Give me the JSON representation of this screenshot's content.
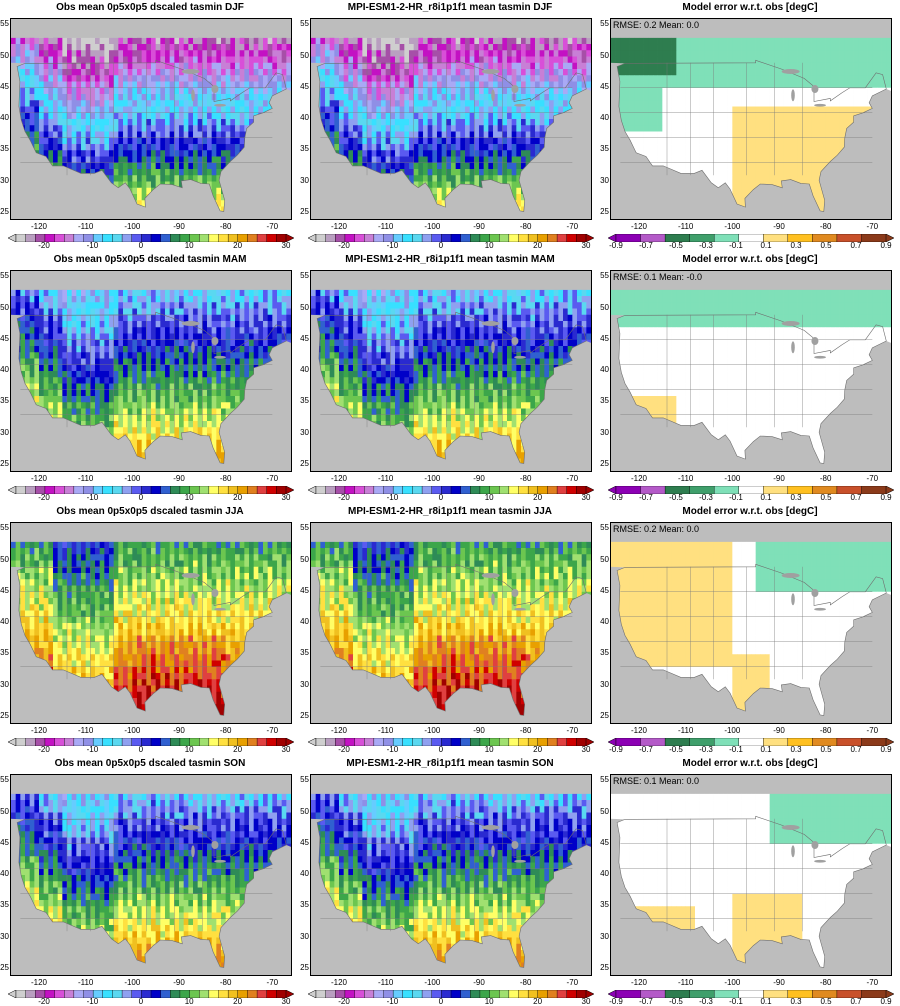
{
  "panels": [
    {
      "title": "Obs mean 0p5x0p5 dscaled tasmin DJF",
      "kind": "field",
      "season": "DJF"
    },
    {
      "title": "MPI-ESM1-2-HR_r8i1p1f1 mean tasmin DJF",
      "kind": "field",
      "season": "DJF"
    },
    {
      "title": "Model error w.r.t. obs [degC]",
      "kind": "error",
      "stats": "RMSE: 0.2  Mean: 0.0",
      "season": "DJF"
    },
    {
      "title": "Obs mean 0p5x0p5 dscaled tasmin MAM",
      "kind": "field",
      "season": "MAM"
    },
    {
      "title": "MPI-ESM1-2-HR_r8i1p1f1 mean tasmin MAM",
      "kind": "field",
      "season": "MAM"
    },
    {
      "title": "Model error w.r.t. obs [degC]",
      "kind": "error",
      "stats": "RMSE: 0.1  Mean: -0.0",
      "season": "MAM"
    },
    {
      "title": "Obs mean 0p5x0p5 dscaled tasmin JJA",
      "kind": "field",
      "season": "JJA"
    },
    {
      "title": "MPI-ESM1-2-HR_r8i1p1f1 mean tasmin JJA",
      "kind": "field",
      "season": "JJA"
    },
    {
      "title": "Model error w.r.t. obs [degC]",
      "kind": "error",
      "stats": "RMSE: 0.2  Mean: 0.0",
      "season": "JJA"
    },
    {
      "title": "Obs mean 0p5x0p5 dscaled tasmin SON",
      "kind": "field",
      "season": "SON"
    },
    {
      "title": "MPI-ESM1-2-HR_r8i1p1f1 mean tasmin SON",
      "kind": "field",
      "season": "SON"
    },
    {
      "title": "Model error w.r.t. obs [degC]",
      "kind": "error",
      "stats": "RMSE: 0.1  Mean: 0.0",
      "season": "SON"
    }
  ],
  "axes": {
    "yticks": [
      "25",
      "30",
      "35",
      "40",
      "45",
      "50",
      "55"
    ],
    "xticks": [
      "-120",
      "-110",
      "-100",
      "-90",
      "-80",
      "-70"
    ]
  },
  "colorbars": {
    "field": {
      "labels": [
        "-20",
        "-10",
        "0",
        "10",
        "20",
        "30"
      ],
      "colors": [
        "#cfcfcf",
        "#b99fc0",
        "#a64fa8",
        "#c311c3",
        "#d84fd8",
        "#c87fd6",
        "#a9a9f5",
        "#8f8fe6",
        "#66ccff",
        "#38e0ff",
        "#5ad8f0",
        "#8fa0f0",
        "#5a5af0",
        "#2a2ad0",
        "#0000c8",
        "#3060d0",
        "#2e8b57",
        "#3ca64a",
        "#6cc650",
        "#a0e070",
        "#ffff66",
        "#ffe040",
        "#f0c020",
        "#e8a000",
        "#e08020",
        "#e04040",
        "#d00000",
        "#a00000"
      ]
    },
    "error": {
      "labels": [
        "-0.9",
        "-0.7",
        "-0.5",
        "-0.3",
        "-0.1",
        "0.1",
        "0.3",
        "0.5",
        "0.7",
        "0.9"
      ],
      "colors": [
        "#8c00b4",
        "#b45ac8",
        "#2e7d4f",
        "#3f9f6b",
        "#7fe0b8",
        "#ffffff",
        "#ffe080",
        "#ffc020",
        "#e08a20",
        "#c8502a",
        "#8b3a1a"
      ]
    }
  },
  "map_colors": {
    "gray": "#bdbdbd",
    "lake": "#a0a0a0"
  }
}
